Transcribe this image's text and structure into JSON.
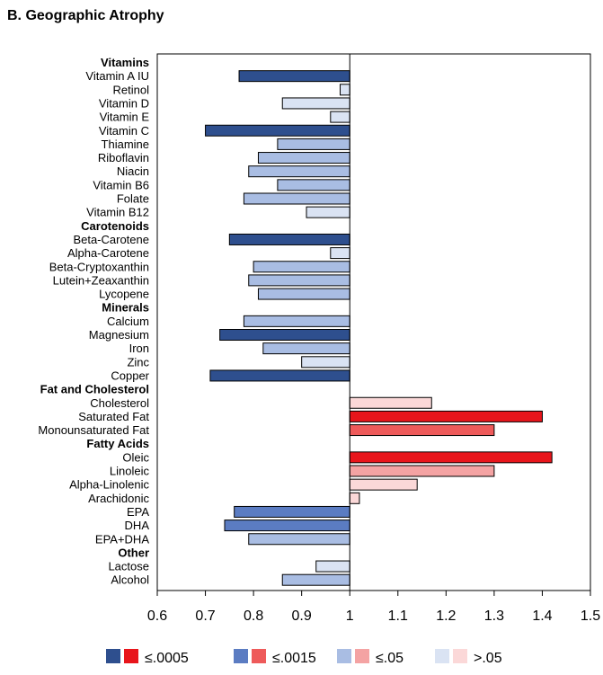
{
  "chart_data": {
    "type": "bar",
    "orientation": "horizontal",
    "title": "B. Geographic Atrophy",
    "xlabel": "",
    "ylabel": "",
    "reference_line": 1,
    "xlim": [
      0.6,
      1.5
    ],
    "xticks": [
      "0.6",
      "0.7",
      "0.8",
      "0.9",
      "1",
      "1.1",
      "1.2",
      "1.3",
      "1.4",
      "1.5"
    ],
    "xtick_values": [
      0.6,
      0.7,
      0.8,
      0.9,
      1.0,
      1.1,
      1.2,
      1.3,
      1.4,
      1.5
    ],
    "rows": [
      {
        "label": "Vitamins",
        "group": true
      },
      {
        "label": "Vitamin A IU",
        "value": 0.77,
        "level": 1
      },
      {
        "label": "Retinol",
        "value": 0.98,
        "level": 4
      },
      {
        "label": "Vitamin D",
        "value": 0.86,
        "level": 4
      },
      {
        "label": "Vitamin E",
        "value": 0.96,
        "level": 4
      },
      {
        "label": "Vitamin C",
        "value": 0.7,
        "level": 1
      },
      {
        "label": "Thiamine",
        "value": 0.85,
        "level": 3
      },
      {
        "label": "Riboflavin",
        "value": 0.81,
        "level": 3
      },
      {
        "label": "Niacin",
        "value": 0.79,
        "level": 3
      },
      {
        "label": "Vitamin B6",
        "value": 0.85,
        "level": 3
      },
      {
        "label": "Folate",
        "value": 0.78,
        "level": 3
      },
      {
        "label": "Vitamin B12",
        "value": 0.91,
        "level": 4
      },
      {
        "label": "Carotenoids",
        "group": true
      },
      {
        "label": "Beta-Carotene",
        "value": 0.75,
        "level": 1
      },
      {
        "label": "Alpha-Carotene",
        "value": 0.96,
        "level": 4
      },
      {
        "label": "Beta-Cryptoxanthin",
        "value": 0.8,
        "level": 3
      },
      {
        "label": "Lutein+Zeaxanthin",
        "value": 0.79,
        "level": 3
      },
      {
        "label": "Lycopene",
        "value": 0.81,
        "level": 3
      },
      {
        "label": "Minerals",
        "group": true
      },
      {
        "label": "Calcium",
        "value": 0.78,
        "level": 3
      },
      {
        "label": "Magnesium",
        "value": 0.73,
        "level": 1
      },
      {
        "label": "Iron",
        "value": 0.82,
        "level": 3
      },
      {
        "label": "Zinc",
        "value": 0.9,
        "level": 4
      },
      {
        "label": "Copper",
        "value": 0.71,
        "level": 1
      },
      {
        "label": "Fat and Cholesterol",
        "group": true
      },
      {
        "label": "Cholesterol",
        "value": 1.17,
        "level": 4
      },
      {
        "label": "Saturated Fat",
        "value": 1.4,
        "level": 1
      },
      {
        "label": "Monounsaturated Fat",
        "value": 1.3,
        "level": 2
      },
      {
        "label": "Fatty Acids",
        "group": true
      },
      {
        "label": "Oleic",
        "value": 1.42,
        "level": 1
      },
      {
        "label": "Linoleic",
        "value": 1.3,
        "level": 3
      },
      {
        "label": "Alpha-Linolenic",
        "value": 1.14,
        "level": 4
      },
      {
        "label": "Arachidonic",
        "value": 1.02,
        "level": 4
      },
      {
        "label": "EPA",
        "value": 0.76,
        "level": 2
      },
      {
        "label": "DHA",
        "value": 0.74,
        "level": 2
      },
      {
        "label": "EPA+DHA",
        "value": 0.79,
        "level": 3
      },
      {
        "label": "Other",
        "group": true
      },
      {
        "label": "Lactose",
        "value": 0.93,
        "level": 4
      },
      {
        "label": "Alcohol",
        "value": 0.86,
        "level": 3
      }
    ],
    "legend": [
      {
        "label": "≤.0005",
        "level": 1
      },
      {
        "label": "≤.0015",
        "level": 2
      },
      {
        "label": "≤.05",
        "level": 3
      },
      {
        "label": ">.05",
        "level": 4
      }
    ],
    "colors": {
      "blue": {
        "1": "#2e4f8e",
        "2": "#5b7cc2",
        "3": "#a9bde3",
        "4": "#dae3f3"
      },
      "red": {
        "1": "#e8151b",
        "2": "#ee5a5a",
        "3": "#f4a3a3",
        "4": "#fbd8d8"
      },
      "stroke": "#000000"
    }
  }
}
